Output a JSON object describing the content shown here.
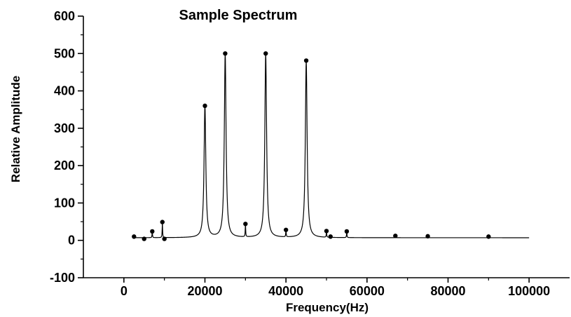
{
  "chart_data": {
    "type": "line",
    "title": "Sample Spectrum",
    "xlabel": "Frequency(Hz)",
    "ylabel": "Relative Amplitude",
    "xlim": [
      -10000,
      110000
    ],
    "ylim": [
      -100,
      600
    ],
    "xticks": [
      0,
      20000,
      40000,
      60000,
      80000,
      100000
    ],
    "yticks": [
      -100,
      0,
      100,
      200,
      300,
      400,
      500,
      600
    ],
    "xtick_labels": [
      "0",
      "20000",
      "40000",
      "60000",
      "80000",
      "100000"
    ],
    "ytick_labels": [
      "-100",
      "0",
      "100",
      "200",
      "300",
      "400",
      "500",
      "600"
    ],
    "grid": false,
    "baseline": 7,
    "peaks": [
      {
        "x": 2500,
        "y": 10
      },
      {
        "x": 5000,
        "y": 4
      },
      {
        "x": 7000,
        "y": 24
      },
      {
        "x": 9500,
        "y": 49
      },
      {
        "x": 10000,
        "y": 4
      },
      {
        "x": 20000,
        "y": 360
      },
      {
        "x": 25000,
        "y": 500
      },
      {
        "x": 30000,
        "y": 44
      },
      {
        "x": 35000,
        "y": 500
      },
      {
        "x": 40000,
        "y": 28
      },
      {
        "x": 45000,
        "y": 481
      },
      {
        "x": 50000,
        "y": 25
      },
      {
        "x": 51000,
        "y": 10
      },
      {
        "x": 55000,
        "y": 24
      },
      {
        "x": 67000,
        "y": 12
      },
      {
        "x": 75000,
        "y": 11
      },
      {
        "x": 90000,
        "y": 10
      }
    ],
    "x_end": 100000
  }
}
